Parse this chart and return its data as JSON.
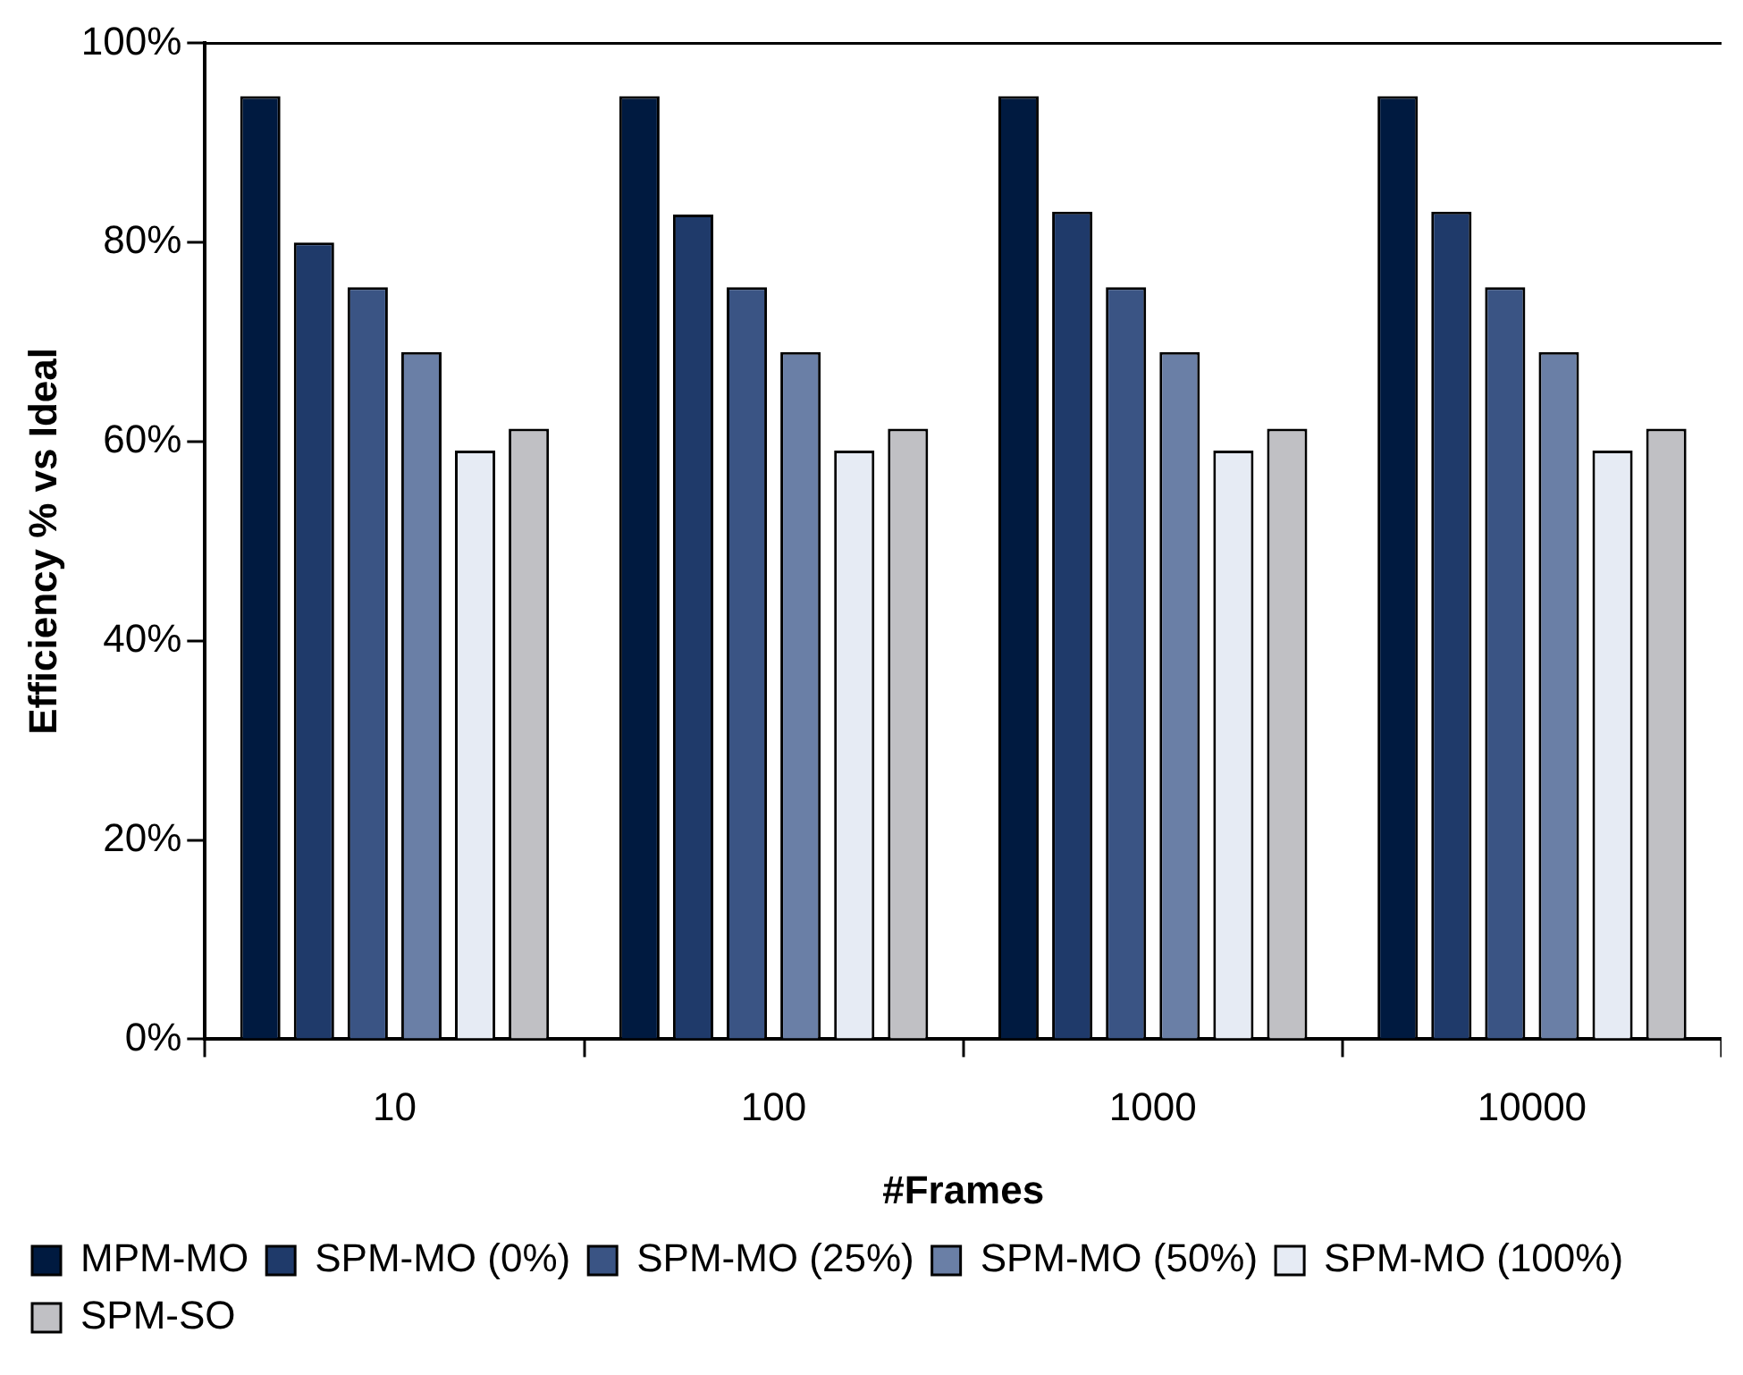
{
  "chart_data": {
    "type": "bar",
    "xlabel": "#Frames",
    "ylabel": "Efficiency % vs Ideal",
    "categories": [
      "10",
      "100",
      "1000",
      "10000"
    ],
    "series": [
      {
        "name": "MPM-MO",
        "color": "#001a40",
        "values": [
          94.7,
          94.7,
          94.7,
          94.7
        ]
      },
      {
        "name": "SPM-MO (0%)",
        "color": "#1f3a6a",
        "values": [
          80,
          82.8,
          83.1,
          83.1
        ]
      },
      {
        "name": "SPM-MO (25%)",
        "color": "#3a5484",
        "values": [
          75.5,
          75.5,
          75.5,
          75.5
        ]
      },
      {
        "name": "SPM-MO (50%)",
        "color": "#6a7fa6",
        "values": [
          69,
          69,
          69,
          69
        ]
      },
      {
        "name": "SPM-MO (100%)",
        "color": "#e6ebf4",
        "values": [
          59.1,
          59.1,
          59.1,
          59.1
        ]
      },
      {
        "name": "SPM-SO",
        "color": "#c0c0c4",
        "values": [
          61.3,
          61.3,
          61.3,
          61.3
        ]
      }
    ],
    "ylim": [
      0,
      100
    ],
    "yticks": [
      {
        "value": 0,
        "label": "0%"
      },
      {
        "value": 20,
        "label": "20%"
      },
      {
        "value": 40,
        "label": "40%"
      },
      {
        "value": 60,
        "label": "60%"
      },
      {
        "value": 80,
        "label": "80%"
      },
      {
        "value": 100,
        "label": "100%"
      }
    ],
    "grid": false,
    "legend": "bottom"
  }
}
